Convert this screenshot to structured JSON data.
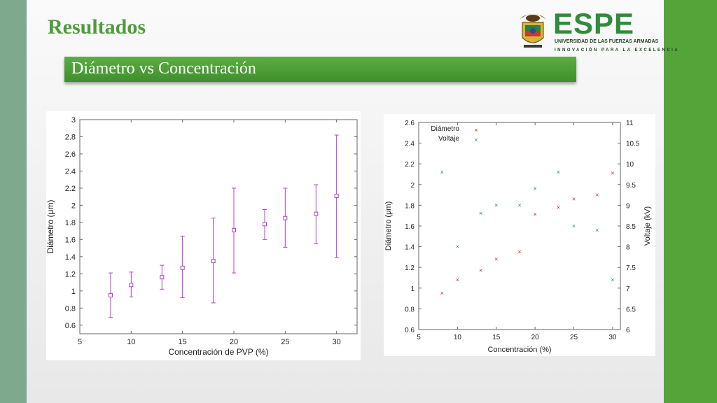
{
  "slide": {
    "title": "Resultados",
    "subtitle": "Diámetro vs Concentración"
  },
  "logo": {
    "name": "ESPE",
    "line1": "UNIVERSIDAD DE LAS FUERZAS ARMADAS",
    "line2": "INNOVACIÓN PARA LA EXCELENCIA"
  },
  "colors": {
    "accent_green": "#54a43a",
    "left_bar": "#7fa98c",
    "errbar": "#b040c8",
    "diam_marker": "#cc2222",
    "volt_marker": "#1a8a66"
  },
  "chart_data": [
    {
      "type": "scatter",
      "xlabel": "Concentración de PVP (%)",
      "ylabel": "Diámetro (μm)",
      "xlim": [
        5,
        32
      ],
      "ylim": [
        0.5,
        3
      ],
      "xticks": [
        5,
        10,
        15,
        20,
        25,
        30
      ],
      "yticks": [
        0.6,
        0.8,
        1,
        1.2,
        1.4,
        1.6,
        1.8,
        2,
        2.2,
        2.4,
        2.6,
        2.8,
        3
      ],
      "grid": false,
      "series": [
        {
          "x": [
            8,
            10,
            13,
            15,
            18,
            20,
            23,
            25,
            28,
            30
          ],
          "values": [
            0.95,
            1.07,
            1.16,
            1.27,
            1.35,
            1.71,
            1.78,
            1.85,
            1.9,
            2.11
          ],
          "err_low": [
            0.69,
            0.93,
            1.02,
            0.92,
            0.86,
            1.21,
            1.6,
            1.51,
            1.55,
            1.39
          ],
          "err_high": [
            1.21,
            1.22,
            1.3,
            1.64,
            1.85,
            2.2,
            1.95,
            2.2,
            2.24,
            2.82
          ]
        }
      ]
    },
    {
      "type": "scatter",
      "xlabel": "Concentración (%)",
      "ylabel": "Diámetro (μm)",
      "y2label": "Voltaje (kV)",
      "xlim": [
        5,
        31
      ],
      "ylim": [
        0.6,
        2.6
      ],
      "y2lim": [
        6,
        11
      ],
      "xticks": [
        5,
        10,
        15,
        20,
        25,
        30
      ],
      "yticks": [
        0.6,
        0.8,
        1,
        1.2,
        1.4,
        1.6,
        1.8,
        2,
        2.2,
        2.4,
        2.6
      ],
      "y2ticks": [
        6,
        6.5,
        7,
        7.5,
        8,
        8.5,
        9,
        9.5,
        10,
        10.5,
        11
      ],
      "legend": "top-left",
      "series": [
        {
          "name": "Diámetro",
          "axis": "left",
          "x": [
            8,
            10,
            13,
            15,
            18,
            20,
            23,
            25,
            28,
            30
          ],
          "values": [
            0.95,
            1.08,
            1.17,
            1.28,
            1.35,
            1.71,
            1.78,
            1.86,
            1.9,
            2.11
          ]
        },
        {
          "name": "Voltaje",
          "axis": "right",
          "x": [
            8,
            10,
            13,
            15,
            18,
            20,
            23,
            25,
            28,
            30
          ],
          "values": [
            9.8,
            8.0,
            8.8,
            9.0,
            9.0,
            9.4,
            9.8,
            8.5,
            8.4,
            7.2
          ]
        }
      ]
    }
  ]
}
